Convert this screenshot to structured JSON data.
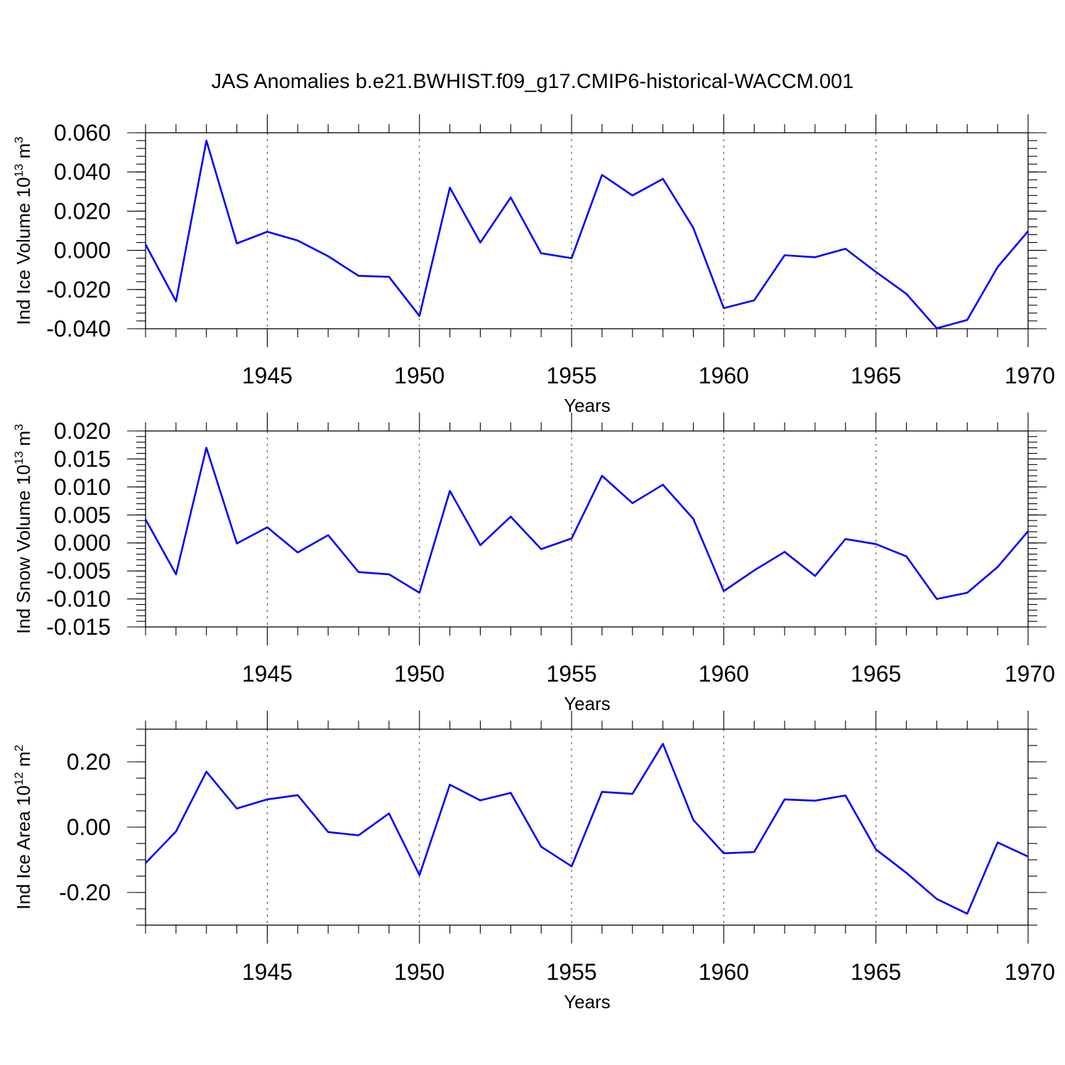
{
  "title": "JAS Anomalies b.e21.BWHIST.f09_g17.CMIP6-historical-WACCM.001",
  "line_color": "#0000ff",
  "chart_data": [
    {
      "type": "line",
      "ylabel": {
        "prefix": "Ind Ice Volume 10",
        "exp": "13",
        "unit": " m",
        "unit_exp": "3"
      },
      "xlabel": "Years",
      "xlim": [
        1941,
        1970
      ],
      "ylim": [
        -0.04,
        0.06
      ],
      "x_ticks": [
        1945,
        1950,
        1955,
        1960,
        1965,
        1970
      ],
      "x_tick_labels": [
        "1945",
        "1950",
        "1955",
        "1960",
        "1965",
        "1970"
      ],
      "y_ticks": [
        -0.04,
        -0.02,
        0.0,
        0.02,
        0.04,
        0.06
      ],
      "y_tick_labels": [
        "-0.040",
        "-0.020",
        "0.000",
        "0.020",
        "0.040",
        "0.060"
      ],
      "y_minor_step": 0.004,
      "grid": "dashed vertical at major x ticks",
      "x": [
        1941,
        1942,
        1943,
        1944,
        1945,
        1946,
        1947,
        1948,
        1949,
        1950,
        1951,
        1952,
        1953,
        1954,
        1955,
        1956,
        1957,
        1958,
        1959,
        1960,
        1961,
        1962,
        1963,
        1964,
        1965,
        1966,
        1967,
        1968,
        1969,
        1970
      ],
      "values": [
        0.003,
        -0.026,
        0.056,
        0.0035,
        0.0095,
        0.005,
        -0.003,
        -0.013,
        -0.0135,
        -0.0335,
        0.032,
        0.004,
        0.027,
        -0.0015,
        -0.004,
        0.0385,
        0.028,
        0.0365,
        0.0115,
        -0.0295,
        -0.0255,
        -0.0025,
        -0.0035,
        0.0008,
        -0.011,
        -0.0222,
        -0.0398,
        -0.0355,
        -0.0085,
        0.0098
      ]
    },
    {
      "type": "line",
      "ylabel": {
        "prefix": "Ind Snow Volume 10",
        "exp": "13",
        "unit": " m",
        "unit_exp": "3"
      },
      "xlabel": "Years",
      "xlim": [
        1941,
        1970
      ],
      "ylim": [
        -0.015,
        0.02
      ],
      "x_ticks": [
        1945,
        1950,
        1955,
        1960,
        1965,
        1970
      ],
      "x_tick_labels": [
        "1945",
        "1950",
        "1955",
        "1960",
        "1965",
        "1970"
      ],
      "y_ticks": [
        -0.015,
        -0.01,
        -0.005,
        0.0,
        0.005,
        0.01,
        0.015,
        0.02
      ],
      "y_tick_labels": [
        "-0.015",
        "-0.010",
        "-0.005",
        "0.000",
        "0.005",
        "0.010",
        "0.015",
        "0.020"
      ],
      "y_minor_step": 0.001,
      "grid": "dashed vertical at major x ticks",
      "x": [
        1941,
        1942,
        1943,
        1944,
        1945,
        1946,
        1947,
        1948,
        1949,
        1950,
        1951,
        1952,
        1953,
        1954,
        1955,
        1956,
        1957,
        1958,
        1959,
        1960,
        1961,
        1962,
        1963,
        1964,
        1965,
        1966,
        1967,
        1968,
        1969,
        1970
      ],
      "values": [
        0.0042,
        -0.0056,
        0.017,
        -0.0001,
        0.0028,
        -0.0017,
        0.0014,
        -0.0052,
        -0.0056,
        -0.0089,
        0.0093,
        -0.0004,
        0.0047,
        -0.0011,
        0.0008,
        0.012,
        0.0071,
        0.0104,
        0.0043,
        -0.0086,
        -0.0049,
        -0.0016,
        -0.0059,
        0.0007,
        -0.0002,
        -0.0024,
        -0.01,
        -0.0089,
        -0.0043,
        0.0021
      ]
    },
    {
      "type": "line",
      "ylabel": {
        "prefix": "Ind Ice Area 10",
        "exp": "12",
        "unit": " m",
        "unit_exp": "2"
      },
      "xlabel": "Years",
      "xlim": [
        1941,
        1970
      ],
      "ylim": [
        -0.3,
        0.3
      ],
      "x_ticks": [
        1945,
        1950,
        1955,
        1960,
        1965,
        1970
      ],
      "x_tick_labels": [
        "1945",
        "1950",
        "1955",
        "1960",
        "1965",
        "1970"
      ],
      "y_ticks": [
        -0.2,
        0.0,
        0.2
      ],
      "y_tick_labels": [
        "-0.20",
        "0.00",
        "0.20"
      ],
      "y_minor_step": 0.05,
      "grid": "dashed vertical at major x ticks",
      "x": [
        1941,
        1942,
        1943,
        1944,
        1945,
        1946,
        1947,
        1948,
        1949,
        1950,
        1951,
        1952,
        1953,
        1954,
        1955,
        1956,
        1957,
        1958,
        1959,
        1960,
        1961,
        1962,
        1963,
        1964,
        1965,
        1966,
        1967,
        1968,
        1969,
        1970
      ],
      "values": [
        -0.11,
        -0.013,
        0.17,
        0.057,
        0.085,
        0.098,
        -0.015,
        -0.025,
        0.042,
        -0.147,
        0.13,
        0.082,
        0.105,
        -0.06,
        -0.12,
        0.108,
        0.102,
        0.255,
        0.022,
        -0.08,
        -0.076,
        0.085,
        0.081,
        0.097,
        -0.068,
        -0.14,
        -0.22,
        -0.265,
        -0.047,
        -0.09
      ]
    }
  ]
}
